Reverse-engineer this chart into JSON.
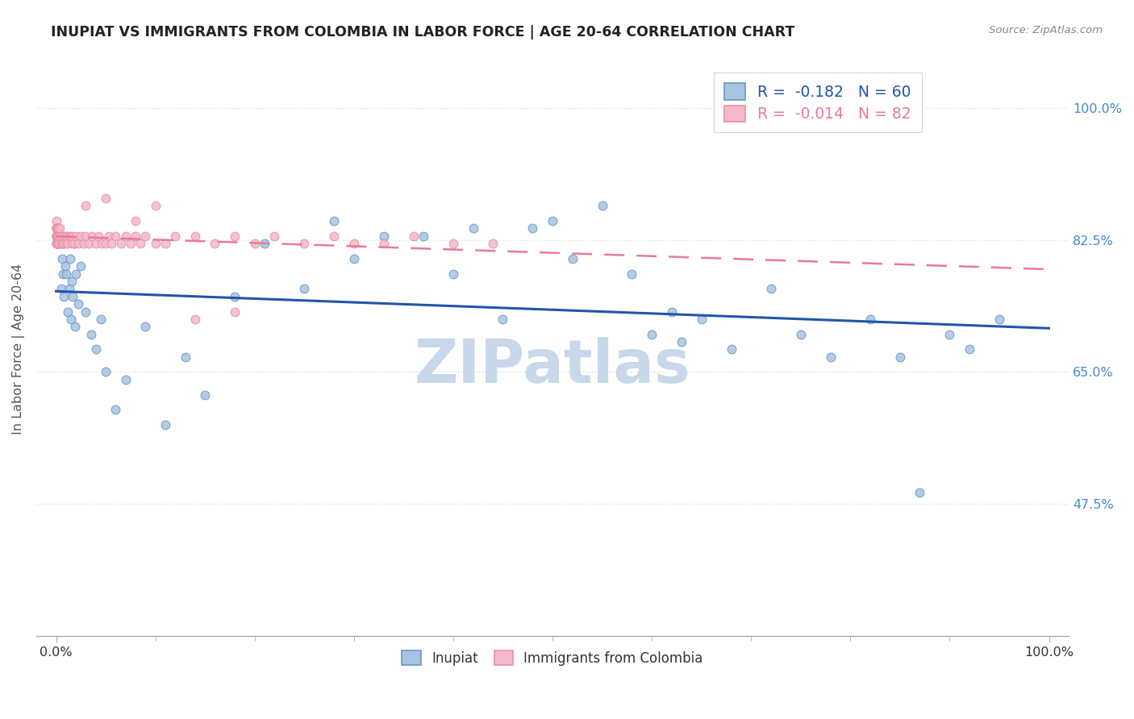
{
  "title": "INUPIAT VS IMMIGRANTS FROM COLOMBIA IN LABOR FORCE | AGE 20-64 CORRELATION CHART",
  "source": "Source: ZipAtlas.com",
  "ylabel": "In Labor Force | Age 20-64",
  "xlim": [
    -0.02,
    1.02
  ],
  "ylim": [
    0.3,
    1.06
  ],
  "yticks": [
    0.475,
    0.65,
    0.825,
    1.0
  ],
  "ytick_labels": [
    "47.5%",
    "65.0%",
    "82.5%",
    "100.0%"
  ],
  "xtick_labels": [
    "0.0%",
    "100.0%"
  ],
  "xticks": [
    0.0,
    1.0
  ],
  "watermark": "ZIPatlas",
  "legend_labels": [
    "Inupiat",
    "Immigrants from Colombia"
  ],
  "inupiat_R": "-0.182",
  "inupiat_N": "60",
  "colombia_R": "-0.014",
  "colombia_N": "82",
  "inupiat_color": "#a8c4e0",
  "colombia_color": "#f4b8c8",
  "inupiat_edge_color": "#6699cc",
  "colombia_edge_color": "#e890aa",
  "inupiat_line_color": "#2255aa",
  "colombia_line_color": "#e87a99",
  "background_color": "#ffffff",
  "title_color": "#222222",
  "source_color": "#888888",
  "ytick_color": "#4488cc",
  "xtick_color": "#333333",
  "grid_color": "#dddddd",
  "ylabel_color": "#555555",
  "watermark_color": "#c8d8ea",
  "inupiat_x": [
    0.003,
    0.004,
    0.005,
    0.006,
    0.007,
    0.007,
    0.008,
    0.009,
    0.01,
    0.012,
    0.013,
    0.014,
    0.015,
    0.016,
    0.017,
    0.018,
    0.019,
    0.02,
    0.022,
    0.025,
    0.03,
    0.035,
    0.04,
    0.045,
    0.05,
    0.06,
    0.07,
    0.09,
    0.11,
    0.13,
    0.15,
    0.18,
    0.21,
    0.25,
    0.28,
    0.3,
    0.33,
    0.37,
    0.4,
    0.42,
    0.45,
    0.48,
    0.5,
    0.52,
    0.55,
    0.58,
    0.6,
    0.62,
    0.63,
    0.65,
    0.68,
    0.72,
    0.75,
    0.78,
    0.82,
    0.85,
    0.87,
    0.9,
    0.92,
    0.95
  ],
  "inupiat_y": [
    0.82,
    0.83,
    0.76,
    0.8,
    0.78,
    0.82,
    0.75,
    0.79,
    0.78,
    0.73,
    0.76,
    0.8,
    0.72,
    0.77,
    0.75,
    0.82,
    0.71,
    0.78,
    0.74,
    0.79,
    0.73,
    0.7,
    0.68,
    0.72,
    0.65,
    0.6,
    0.64,
    0.71,
    0.58,
    0.67,
    0.62,
    0.75,
    0.82,
    0.76,
    0.85,
    0.8,
    0.83,
    0.83,
    0.78,
    0.84,
    0.72,
    0.84,
    0.85,
    0.8,
    0.87,
    0.78,
    0.7,
    0.73,
    0.69,
    0.72,
    0.68,
    0.76,
    0.7,
    0.67,
    0.72,
    0.67,
    0.49,
    0.7,
    0.68,
    0.72
  ],
  "colombia_x": [
    0.0,
    0.0,
    0.0,
    0.0,
    0.0,
    0.0,
    0.0,
    0.0,
    0.0,
    0.0,
    0.0,
    0.0,
    0.0,
    0.0,
    0.0,
    0.0,
    0.0,
    0.0,
    0.0,
    0.0,
    0.0,
    0.0,
    0.001,
    0.001,
    0.001,
    0.001,
    0.002,
    0.002,
    0.002,
    0.003,
    0.003,
    0.004,
    0.004,
    0.005,
    0.005,
    0.006,
    0.007,
    0.008,
    0.009,
    0.01,
    0.011,
    0.012,
    0.013,
    0.015,
    0.016,
    0.017,
    0.018,
    0.02,
    0.022,
    0.025,
    0.028,
    0.03,
    0.033,
    0.036,
    0.04,
    0.043,
    0.046,
    0.05,
    0.053,
    0.056,
    0.06,
    0.065,
    0.07,
    0.075,
    0.08,
    0.085,
    0.09,
    0.1,
    0.11,
    0.12,
    0.14,
    0.16,
    0.18,
    0.2,
    0.22,
    0.25,
    0.28,
    0.3,
    0.33,
    0.36,
    0.4,
    0.44
  ],
  "colombia_y": [
    0.83,
    0.84,
    0.83,
    0.84,
    0.85,
    0.83,
    0.84,
    0.83,
    0.82,
    0.83,
    0.84,
    0.82,
    0.83,
    0.84,
    0.82,
    0.83,
    0.84,
    0.83,
    0.82,
    0.83,
    0.84,
    0.83,
    0.82,
    0.83,
    0.84,
    0.83,
    0.82,
    0.83,
    0.84,
    0.82,
    0.83,
    0.83,
    0.84,
    0.82,
    0.83,
    0.82,
    0.83,
    0.82,
    0.83,
    0.82,
    0.83,
    0.82,
    0.83,
    0.83,
    0.82,
    0.83,
    0.82,
    0.83,
    0.82,
    0.83,
    0.82,
    0.83,
    0.82,
    0.83,
    0.82,
    0.83,
    0.82,
    0.82,
    0.83,
    0.82,
    0.83,
    0.82,
    0.83,
    0.82,
    0.83,
    0.82,
    0.83,
    0.82,
    0.82,
    0.83,
    0.83,
    0.82,
    0.83,
    0.82,
    0.83,
    0.82,
    0.83,
    0.82,
    0.82,
    0.83,
    0.82,
    0.82
  ],
  "colombia_outlier_x": [
    0.03,
    0.05,
    0.08,
    0.1,
    0.14,
    0.18
  ],
  "colombia_outlier_y": [
    0.87,
    0.88,
    0.85,
    0.87,
    0.72,
    0.73
  ]
}
